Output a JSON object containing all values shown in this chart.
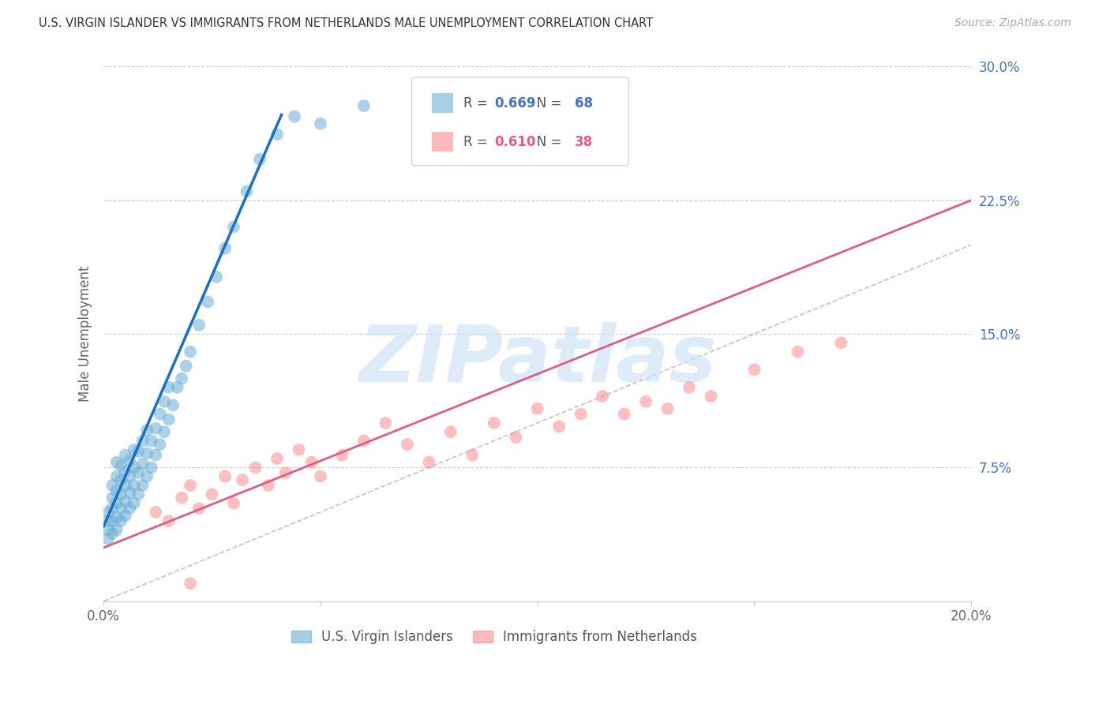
{
  "title": "U.S. VIRGIN ISLANDER VS IMMIGRANTS FROM NETHERLANDS MALE UNEMPLOYMENT CORRELATION CHART",
  "source": "Source: ZipAtlas.com",
  "ylabel": "Male Unemployment",
  "xlim": [
    0.0,
    0.2
  ],
  "ylim": [
    0.0,
    0.3
  ],
  "yticks": [
    0.0,
    0.075,
    0.15,
    0.225,
    0.3
  ],
  "ytick_labels": [
    "",
    "7.5%",
    "15.0%",
    "22.5%",
    "30.0%"
  ],
  "xticks": [
    0.0,
    0.05,
    0.1,
    0.15,
    0.2
  ],
  "xtick_labels": [
    "0.0%",
    "",
    "",
    "",
    "20.0%"
  ],
  "blue_label": "U.S. Virgin Islanders",
  "pink_label": "Immigrants from Netherlands",
  "blue_R": "0.669",
  "blue_N": "68",
  "pink_R": "0.610",
  "pink_N": "38",
  "blue_color": "#6baed6",
  "pink_color": "#fc8d8d",
  "blue_line_color": "#1a6fc4",
  "pink_line_color": "#e05c8a",
  "ref_line_color": "#aaaaaa",
  "watermark_text": "ZIPatlas",
  "watermark_color": "#d0e4f7",
  "blue_x": [
    0.001,
    0.001,
    0.001,
    0.001,
    0.002,
    0.002,
    0.002,
    0.002,
    0.002,
    0.003,
    0.003,
    0.003,
    0.003,
    0.003,
    0.003,
    0.004,
    0.004,
    0.004,
    0.004,
    0.004,
    0.005,
    0.005,
    0.005,
    0.005,
    0.005,
    0.006,
    0.006,
    0.006,
    0.006,
    0.007,
    0.007,
    0.007,
    0.007,
    0.008,
    0.008,
    0.008,
    0.009,
    0.009,
    0.009,
    0.01,
    0.01,
    0.01,
    0.011,
    0.011,
    0.012,
    0.012,
    0.013,
    0.013,
    0.014,
    0.014,
    0.015,
    0.015,
    0.016,
    0.017,
    0.018,
    0.019,
    0.02,
    0.022,
    0.024,
    0.026,
    0.028,
    0.03,
    0.033,
    0.036,
    0.04,
    0.044,
    0.05,
    0.06
  ],
  "blue_y": [
    0.035,
    0.04,
    0.045,
    0.05,
    0.038,
    0.045,
    0.052,
    0.058,
    0.065,
    0.04,
    0.047,
    0.055,
    0.062,
    0.07,
    0.078,
    0.045,
    0.052,
    0.06,
    0.068,
    0.076,
    0.048,
    0.056,
    0.065,
    0.073,
    0.082,
    0.052,
    0.061,
    0.07,
    0.079,
    0.055,
    0.065,
    0.075,
    0.085,
    0.06,
    0.072,
    0.084,
    0.065,
    0.077,
    0.09,
    0.07,
    0.083,
    0.096,
    0.075,
    0.09,
    0.082,
    0.097,
    0.088,
    0.105,
    0.095,
    0.112,
    0.102,
    0.12,
    0.11,
    0.12,
    0.125,
    0.132,
    0.14,
    0.155,
    0.168,
    0.182,
    0.198,
    0.21,
    0.23,
    0.248,
    0.262,
    0.272,
    0.268,
    0.278
  ],
  "pink_x": [
    0.012,
    0.015,
    0.018,
    0.02,
    0.022,
    0.025,
    0.028,
    0.03,
    0.032,
    0.035,
    0.038,
    0.04,
    0.042,
    0.045,
    0.048,
    0.05,
    0.055,
    0.06,
    0.065,
    0.07,
    0.075,
    0.08,
    0.085,
    0.09,
    0.095,
    0.1,
    0.105,
    0.11,
    0.115,
    0.12,
    0.125,
    0.13,
    0.135,
    0.14,
    0.15,
    0.16,
    0.17,
    0.02
  ],
  "pink_y": [
    0.05,
    0.045,
    0.058,
    0.065,
    0.052,
    0.06,
    0.07,
    0.055,
    0.068,
    0.075,
    0.065,
    0.08,
    0.072,
    0.085,
    0.078,
    0.07,
    0.082,
    0.09,
    0.1,
    0.088,
    0.078,
    0.095,
    0.082,
    0.1,
    0.092,
    0.108,
    0.098,
    0.105,
    0.115,
    0.105,
    0.112,
    0.108,
    0.12,
    0.115,
    0.13,
    0.14,
    0.145,
    0.01
  ],
  "blue_line_x": [
    0.0,
    0.041
  ],
  "blue_line_y": [
    0.042,
    0.273
  ],
  "pink_line_x": [
    0.0,
    0.2
  ],
  "pink_line_y": [
    0.03,
    0.225
  ],
  "ref_line_x": [
    0.0,
    0.3
  ],
  "ref_line_y": [
    0.0,
    0.3
  ]
}
